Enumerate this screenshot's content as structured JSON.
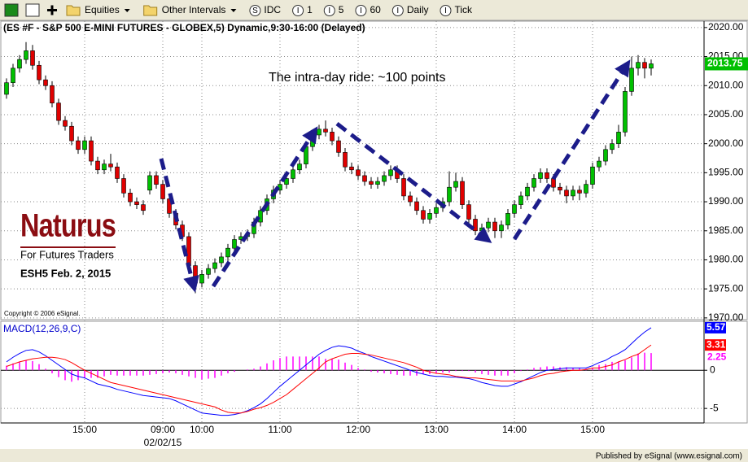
{
  "toolbar": {
    "menus": [
      "Equities",
      "Other Intervals"
    ],
    "source": {
      "icon": "S",
      "label": "IDC"
    },
    "intervals": [
      {
        "icon": "I",
        "label": "1"
      },
      {
        "icon": "I",
        "label": "5"
      },
      {
        "icon": "I",
        "label": "60"
      },
      {
        "icon": "I",
        "label": "Daily"
      },
      {
        "icon": "I",
        "label": "Tick"
      }
    ]
  },
  "branding": {
    "name": "Naturus",
    "tagline": "For Futures Traders",
    "note": "ESH5 Feb. 2, 2015"
  },
  "copyright": "Copyright © 2006 eSignal.",
  "footer": "Published by eSignal (www.esignal.com)",
  "chart_data": [
    {
      "type": "candlestick",
      "title": "(ES #F - S&P 500 E-MINI FUTURES - GLOBEX,5) Dynamic,9:30-16:00 (Delayed)",
      "annotation": "The intra-day ride: ~100 points",
      "categories": [
        null,
        null,
        null,
        null,
        null,
        null,
        null,
        null,
        null,
        null,
        null,
        null,
        "15:00",
        null,
        null,
        null,
        null,
        null,
        null,
        null,
        null,
        null,
        null,
        null,
        "09:00",
        null,
        null,
        null,
        null,
        null,
        "10:00",
        null,
        null,
        null,
        null,
        null,
        null,
        null,
        null,
        null,
        null,
        null,
        "11:00",
        null,
        null,
        null,
        null,
        null,
        null,
        null,
        null,
        null,
        null,
        null,
        "12:00",
        null,
        null,
        null,
        null,
        null,
        null,
        null,
        null,
        null,
        null,
        null,
        "13:00",
        null,
        null,
        null,
        null,
        null,
        null,
        null,
        null,
        null,
        null,
        null,
        "14:00",
        null,
        null,
        null,
        null,
        null,
        null,
        null,
        null,
        null,
        null,
        null,
        "15:00",
        null,
        null,
        null,
        null,
        null,
        null,
        null,
        null,
        null
      ],
      "x_sublabels": [
        null,
        null,
        null,
        null,
        null,
        null,
        null,
        null,
        null,
        null,
        null,
        null,
        null,
        null,
        null,
        null,
        null,
        null,
        null,
        null,
        null,
        null,
        null,
        null,
        "02/02/15",
        null,
        null,
        null,
        null,
        null,
        null,
        null,
        null,
        null,
        null,
        null,
        null,
        null,
        null,
        null,
        null,
        null,
        null,
        null,
        null,
        null,
        null,
        null,
        null,
        null,
        null,
        null,
        null,
        null,
        null,
        null,
        null,
        null,
        null,
        null,
        null,
        null,
        null,
        null,
        null,
        null,
        null,
        null,
        null,
        null,
        null,
        null,
        null,
        null,
        null,
        null,
        null,
        null,
        null,
        null,
        null,
        null,
        null,
        null,
        null,
        null,
        null,
        null,
        null,
        null,
        null,
        null,
        null,
        null,
        null,
        null,
        null,
        null,
        null,
        null
      ],
      "open": [
        2008.5,
        2010.5,
        2013,
        2014.5,
        2016,
        2013.5,
        2011,
        2010,
        2007,
        2004,
        2003,
        2000.5,
        1999,
        2000.5,
        1997,
        1995.5,
        1996.5,
        1996,
        1994,
        1991.5,
        1990,
        1989.5,
        1992,
        1994.5,
        1993,
        1990.5,
        1988,
        1986,
        1984,
        1979,
        1976,
        1977.5,
        1978.5,
        1979.5,
        1980.5,
        1982,
        1983.5,
        1984,
        1984.5,
        1986.5,
        1988.5,
        1990.5,
        1992,
        1993,
        1994,
        1995.5,
        1996.5,
        1999.5,
        2001.5,
        2002.5,
        2002,
        2000.5,
        1998.5,
        1996,
        1995.5,
        1994.5,
        1993.5,
        1993,
        1993.5,
        1994.5,
        1995.5,
        1994,
        1991,
        1990,
        1988.5,
        1987,
        1988,
        1989,
        1990,
        1992.5,
        1993.5,
        1989.5,
        1987,
        1985,
        1985.5,
        1986.5,
        1985,
        1986,
        1988,
        1989.5,
        1991,
        1992.5,
        1994,
        1995,
        1994,
        1992.5,
        1992,
        1991,
        1992,
        1991.5,
        1993,
        1996,
        1997,
        1999,
        2000,
        2002,
        2009,
        2013,
        2014,
        2013
      ],
      "high": [
        2011.25,
        2013.75,
        2015.25,
        2017.5,
        2017,
        2014.25,
        2011.75,
        2010.75,
        2007.75,
        2004.75,
        2003.75,
        2001.25,
        2001.25,
        2001.25,
        1997.75,
        1997.25,
        1998.25,
        1996.75,
        1994.75,
        1992.25,
        1990.75,
        1990.25,
        1995.25,
        1995.25,
        1993.75,
        1991.25,
        1988.75,
        1986.75,
        1984.75,
        1979.75,
        1978.25,
        1979.25,
        1980.25,
        1981.25,
        1982.75,
        1984.25,
        1984.75,
        1985.25,
        1987.25,
        1989.25,
        1991.25,
        1992.75,
        1993.75,
        1994.75,
        1996.25,
        1997.25,
        2000.25,
        2002.25,
        2003.25,
        2004,
        2002.75,
        2001.25,
        1999.25,
        1996.75,
        1996.25,
        1995.25,
        1994.25,
        1994.25,
        1995.25,
        1996.25,
        1996.25,
        1994.75,
        1991.75,
        1990.75,
        1989.25,
        1988.75,
        1989.75,
        1990.75,
        1995.25,
        1995,
        1994.25,
        1990.25,
        1987.75,
        1986.25,
        1987.25,
        1987.25,
        1986.75,
        1988.75,
        1990.25,
        1991.75,
        1993.25,
        1994.75,
        1995.75,
        1995.75,
        1994.75,
        1993.25,
        1992.75,
        1992.75,
        1992.75,
        1993.75,
        1996.75,
        1997.75,
        1999.75,
        2000.75,
        2003.25,
        2009.75,
        2015,
        2015.25,
        2014.75,
        2014.5
      ],
      "low": [
        2007.75,
        2009.75,
        2012.25,
        2013.75,
        2012.75,
        2010.25,
        2009.25,
        2006.25,
        2003.25,
        2002.25,
        1999.75,
        1998.25,
        1998.25,
        1996.25,
        1994.75,
        1994.75,
        1995.25,
        1993.25,
        1990.75,
        1989.25,
        1988.75,
        1987.75,
        1991.25,
        1992.25,
        1989.75,
        1987.25,
        1985.25,
        1983.25,
        1978.25,
        1974.25,
        1975.25,
        1976.75,
        1977.75,
        1978.75,
        1979.75,
        1981.25,
        1982.75,
        1983.25,
        1983.75,
        1985.75,
        1987.75,
        1989.75,
        1991.25,
        1992.25,
        1993.25,
        1994.75,
        1995.75,
        1998.75,
        2000.75,
        2001.25,
        1999.75,
        1997.75,
        1995.25,
        1994.75,
        1993.75,
        1992.75,
        1992.25,
        1992.25,
        1992.75,
        1993.75,
        1993.25,
        1990.25,
        1989.25,
        1987.75,
        1986.25,
        1986.25,
        1987.25,
        1988.25,
        1989.25,
        1991.75,
        1988.75,
        1986.25,
        1984.25,
        1984.25,
        1984.75,
        1983.75,
        1983.75,
        1985.25,
        1987.25,
        1988.75,
        1990.25,
        1991.75,
        1993.25,
        1993.25,
        1991.75,
        1991.25,
        1989.75,
        1990.25,
        1990.25,
        1990.75,
        1992.25,
        1995.25,
        1996.25,
        1998.25,
        1999.25,
        2001.25,
        2008.25,
        2011.75,
        2011.25,
        2011.75
      ],
      "close": [
        2010.5,
        2013,
        2014.5,
        2016,
        2013.5,
        2011,
        2010,
        2007,
        2004,
        2003,
        2000.5,
        1999,
        2000.5,
        1997,
        1995.5,
        1996.5,
        1996,
        1994,
        1991.5,
        1990,
        1989.5,
        1988.5,
        1994.5,
        1993,
        1990.5,
        1988,
        1986,
        1984,
        1979,
        1976,
        1977.5,
        1978.5,
        1979.5,
        1980.5,
        1982,
        1983.5,
        1984,
        1984.5,
        1986.5,
        1988.5,
        1990.5,
        1992,
        1993,
        1994,
        1995.5,
        1996.5,
        1999.5,
        2001.5,
        2002.5,
        2002,
        2000.5,
        1998.5,
        1996,
        1995.5,
        1994.5,
        1993.5,
        1993,
        1993.5,
        1994.5,
        1995.5,
        1994,
        1991,
        1990,
        1988.5,
        1987,
        1988,
        1989,
        1990,
        1992.5,
        1993.5,
        1989.5,
        1987,
        1985,
        1985.5,
        1986.5,
        1985,
        1986,
        1988,
        1989.5,
        1991,
        1992.5,
        1994,
        1995,
        1994,
        1992.5,
        1992,
        1991,
        1992,
        1991.5,
        1993,
        1996,
        1997,
        1999,
        2000,
        2002,
        2009,
        2013,
        2014,
        2013,
        2013.75
      ],
      "up_color": "#00c000",
      "down_color": "#e00000",
      "last_color": "#00c000",
      "ylim": [
        1969.7,
        2021.1
      ],
      "yticks": [
        {
          "value": 1970,
          "label": "1970.00"
        },
        {
          "value": 1975,
          "label": "1975.00"
        },
        {
          "value": 1980,
          "label": "1980.00"
        },
        {
          "value": 1985,
          "label": "1985.00"
        },
        {
          "value": 1990,
          "label": "1990.00"
        },
        {
          "value": 1995,
          "label": "1995.00"
        },
        {
          "value": 2000,
          "label": "2000.00"
        },
        {
          "value": 2005,
          "label": "2005.00"
        },
        {
          "value": 2010,
          "label": "2010.00"
        },
        {
          "value": 2015,
          "label": "2015.00"
        },
        {
          "value": 2020,
          "label": "2020.00"
        }
      ],
      "grid": true
    },
    {
      "type": "macd",
      "title": "MACD(12,26,9,C)",
      "series": [
        {
          "color": "#0000ff",
          "style": "line",
          "values": [
            1.1,
            1.7,
            2.2,
            2.6,
            2.7,
            2.4,
            1.9,
            1.3,
            0.7,
            0.1,
            -0.5,
            -0.8,
            -1.0,
            -1.4,
            -1.8,
            -2.0,
            -2.2,
            -2.5,
            -2.7,
            -2.9,
            -3.1,
            -3.3,
            -3.4,
            -3.5,
            -3.6,
            -3.7,
            -4.0,
            -4.4,
            -4.8,
            -5.2,
            -5.6,
            -5.7,
            -5.8,
            -5.9,
            -5.9,
            -5.8,
            -5.6,
            -5.3,
            -4.9,
            -4.4,
            -3.7,
            -2.9,
            -2.1,
            -1.4,
            -0.7,
            0.0,
            0.7,
            1.4,
            2.1,
            2.6,
            3.0,
            3.2,
            3.1,
            2.9,
            2.5,
            2.2,
            1.8,
            1.5,
            1.2,
            0.9,
            0.6,
            0.3,
            0.0,
            -0.3,
            -0.5,
            -0.7,
            -0.8,
            -0.8,
            -0.9,
            -0.9,
            -1.0,
            -1.1,
            -1.3,
            -1.6,
            -1.8,
            -2.0,
            -2.1,
            -2.1,
            -1.8,
            -1.5,
            -1.1,
            -0.7,
            -0.3,
            0.0,
            0.1,
            0.2,
            0.3,
            0.3,
            0.3,
            0.3,
            0.6,
            1.0,
            1.3,
            1.8,
            2.2,
            2.7,
            3.5,
            4.3,
            5.0,
            5.57
          ]
        },
        {
          "color": "#ff0000",
          "style": "line",
          "values": [
            0.5,
            0.8,
            1.1,
            1.3,
            1.5,
            1.6,
            1.7,
            1.7,
            1.6,
            1.4,
            1.0,
            0.5,
            0.0,
            -0.4,
            -0.8,
            -1.2,
            -1.6,
            -1.8,
            -2.0,
            -2.2,
            -2.4,
            -2.6,
            -2.8,
            -3.0,
            -3.2,
            -3.4,
            -3.6,
            -3.8,
            -4.0,
            -4.2,
            -4.4,
            -4.6,
            -4.8,
            -5.2,
            -5.5,
            -5.6,
            -5.6,
            -5.4,
            -5.1,
            -4.9,
            -4.6,
            -4.2,
            -3.7,
            -3.2,
            -2.5,
            -1.8,
            -1.1,
            -0.4,
            0.3,
            1.1,
            1.5,
            1.8,
            2.1,
            2.2,
            2.2,
            2.1,
            2.0,
            1.8,
            1.6,
            1.4,
            1.2,
            1.0,
            0.7,
            0.4,
            0.0,
            -0.2,
            -0.4,
            -0.5,
            -0.6,
            -0.8,
            -0.9,
            -1.0,
            -1.0,
            -1.1,
            -1.2,
            -1.3,
            -1.4,
            -1.4,
            -1.4,
            -1.4,
            -1.2,
            -1.0,
            -0.7,
            -0.5,
            -0.4,
            -0.2,
            -0.1,
            0.0,
            0.0,
            0.1,
            0.3,
            0.3,
            0.5,
            0.7,
            1.1,
            1.4,
            1.8,
            2.1,
            2.7,
            3.31
          ]
        },
        {
          "color": "#ff00ff",
          "style": "histogram",
          "values": [
            0.6,
            0.9,
            1.1,
            1.3,
            1.2,
            0.8,
            0.2,
            -0.4,
            -0.9,
            -1.3,
            -1.5,
            -1.3,
            -1.0,
            -1.0,
            -1.0,
            -0.8,
            -0.6,
            -0.7,
            -0.7,
            -0.7,
            -0.7,
            -0.7,
            -0.6,
            -0.5,
            -0.4,
            -0.3,
            -0.4,
            -0.6,
            -0.8,
            -1.0,
            -1.2,
            -1.1,
            -1.0,
            -0.7,
            -0.4,
            -0.2,
            0.0,
            0.1,
            0.2,
            0.5,
            0.9,
            1.3,
            1.6,
            1.8,
            1.8,
            1.8,
            1.8,
            1.8,
            1.8,
            1.5,
            1.5,
            1.4,
            1.0,
            0.7,
            0.3,
            0.1,
            -0.2,
            -0.3,
            -0.4,
            -0.5,
            -0.6,
            -0.7,
            -0.7,
            -0.7,
            -0.5,
            -0.5,
            -0.4,
            -0.3,
            -0.3,
            -0.1,
            -0.1,
            -0.1,
            -0.3,
            -0.5,
            -0.6,
            -0.7,
            -0.7,
            -0.7,
            -0.4,
            -0.1,
            0.1,
            0.3,
            0.4,
            0.5,
            0.5,
            0.4,
            0.4,
            0.3,
            0.3,
            0.2,
            0.3,
            0.7,
            0.8,
            1.1,
            1.1,
            1.3,
            1.7,
            2.2,
            2.3,
            2.25
          ]
        }
      ],
      "ylim": [
        -6.9,
        6.2
      ],
      "yticks": [
        -5,
        0
      ],
      "grid": true
    }
  ]
}
